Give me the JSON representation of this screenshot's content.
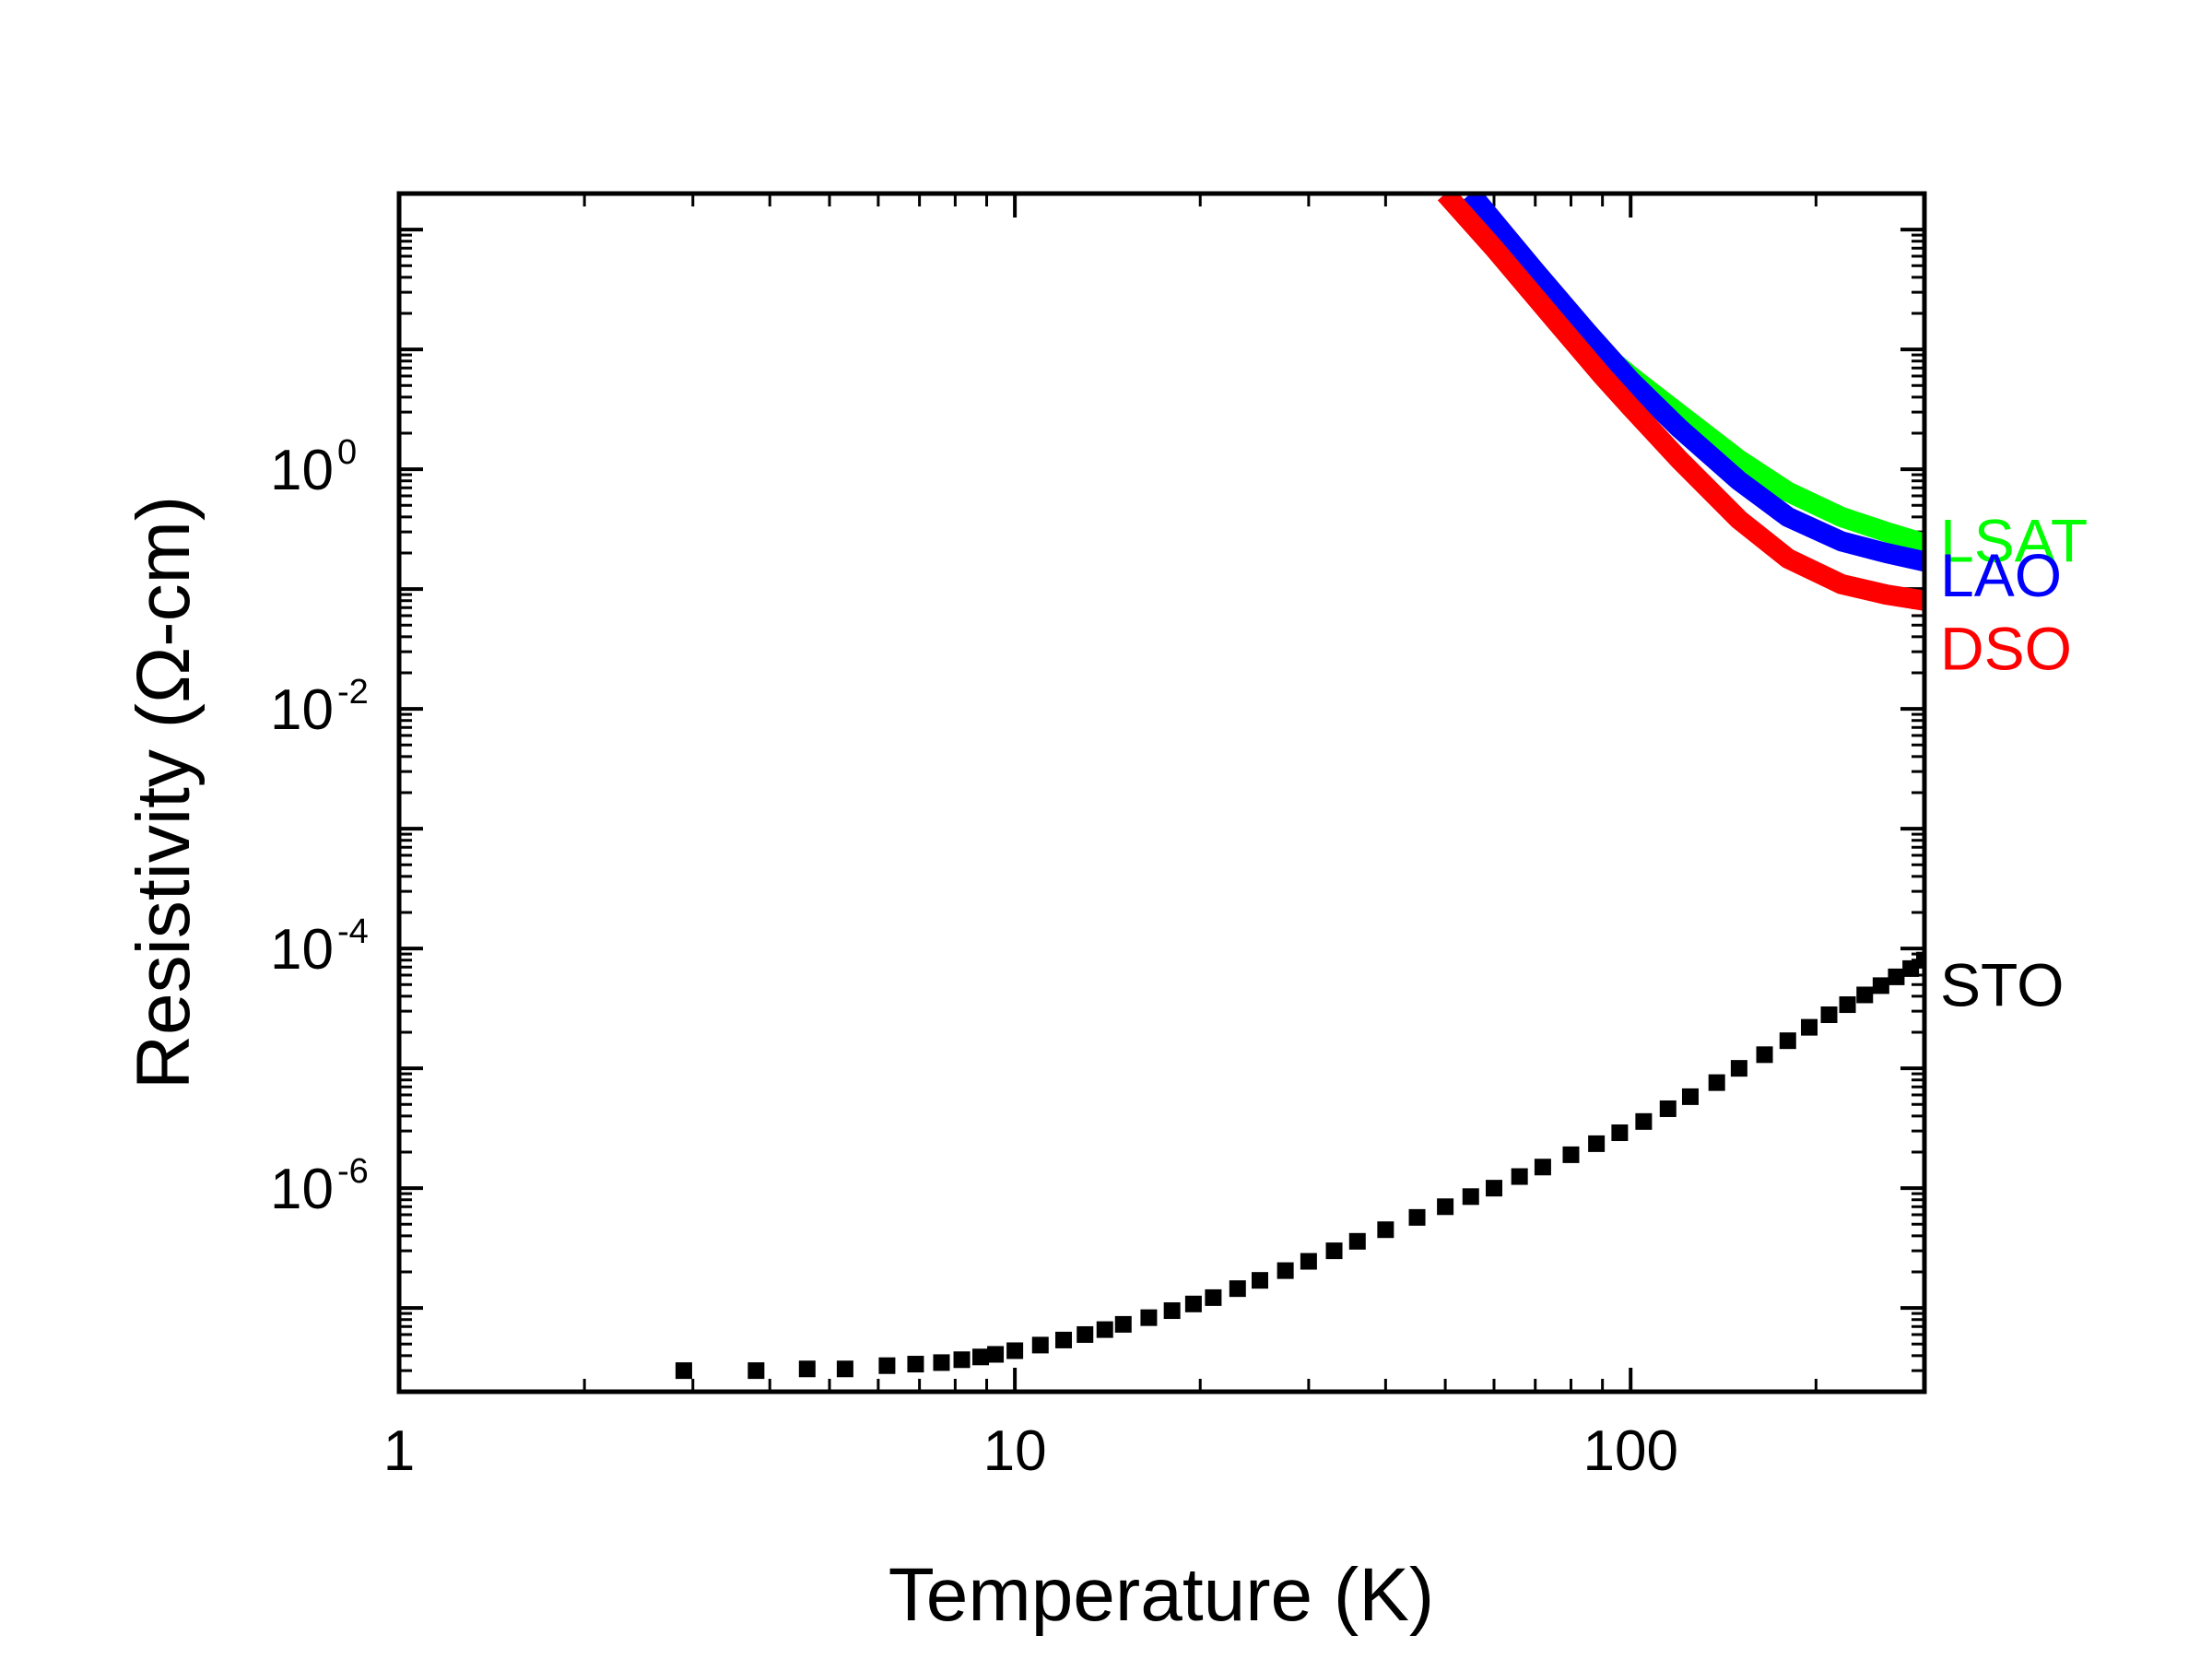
{
  "chart_data": {
    "type": "line",
    "title": "",
    "xlabel": "Temperature (K)",
    "ylabel": "Resistivity (Ω-cm)",
    "x_scale": "log",
    "y_scale": "log",
    "xlim": [
      1,
      300
    ],
    "ylim": [
      2e-08,
      200
    ],
    "grid": false,
    "x_ticks": [
      {
        "value": 1,
        "label": "1"
      },
      {
        "value": 10,
        "label": "10"
      },
      {
        "value": 100,
        "label": "100"
      }
    ],
    "y_ticks": [
      {
        "value": 1,
        "base": "10",
        "exp": "0"
      },
      {
        "value": 0.01,
        "base": "10",
        "exp": "-2"
      },
      {
        "value": 0.0001,
        "base": "10",
        "exp": "-4"
      },
      {
        "value": 1e-06,
        "base": "10",
        "exp": "-6"
      }
    ],
    "series": [
      {
        "name": "LSAT",
        "label": "LSAT",
        "color": "#00ff00",
        "style": "line",
        "x": [
          85,
          100,
          120,
          150,
          180,
          220,
          260,
          300
        ],
        "y": [
          12,
          6.0,
          2.9,
          1.2,
          0.65,
          0.4,
          0.3,
          0.24
        ]
      },
      {
        "name": "LAO",
        "label": "LAO",
        "color": "#0000ff",
        "style": "line",
        "x": [
          55,
          70,
          85,
          100,
          120,
          150,
          180,
          220,
          260,
          300
        ],
        "y": [
          200,
          45,
          14,
          5.5,
          2.2,
          0.8,
          0.4,
          0.25,
          0.2,
          0.17
        ]
      },
      {
        "name": "DSO",
        "label": "DSO",
        "color": "#ff0000",
        "style": "line",
        "x": [
          50,
          60,
          75,
          90,
          100,
          120,
          150,
          180,
          220,
          260,
          300
        ],
        "y": [
          200,
          70,
          18,
          6.0,
          3.3,
          1.2,
          0.38,
          0.18,
          0.11,
          0.09,
          0.08
        ]
      },
      {
        "name": "STO",
        "label": "STO",
        "color": "#000000",
        "style": "markers",
        "marker": "square",
        "x": [
          2.9,
          3.8,
          4.6,
          5.3,
          6.2,
          6.9,
          7.6,
          8.2,
          8.8,
          9.3,
          10.0,
          11,
          12,
          13,
          14,
          15,
          16.5,
          18,
          19.5,
          21,
          23,
          25,
          27.5,
          30,
          33,
          36,
          40,
          45,
          50,
          55,
          60,
          66,
          72,
          80,
          88,
          96,
          105,
          115,
          125,
          138,
          150,
          165,
          180,
          195,
          210,
          225,
          240,
          255,
          270,
          285,
          300
        ],
        "y": [
          3e-08,
          3e-08,
          3.1e-08,
          3.1e-08,
          3.3e-08,
          3.4e-08,
          3.5e-08,
          3.7e-08,
          3.9e-08,
          4.1e-08,
          4.4e-08,
          4.9e-08,
          5.4e-08,
          6e-08,
          6.6e-08,
          7.3e-08,
          8.3e-08,
          9.5e-08,
          1.08e-07,
          1.22e-07,
          1.45e-07,
          1.7e-07,
          2.05e-07,
          2.45e-07,
          3e-07,
          3.6e-07,
          4.5e-07,
          5.7e-07,
          7e-07,
          8.5e-07,
          1e-06,
          1.25e-06,
          1.5e-06,
          1.9e-06,
          2.35e-06,
          2.9e-06,
          3.6e-06,
          4.6e-06,
          5.8e-06,
          7.6e-06,
          1e-05,
          1.3e-05,
          1.7e-05,
          2.2e-05,
          2.8e-05,
          3.4e-05,
          4.1e-05,
          4.9e-05,
          5.8e-05,
          6.8e-05,
          8e-05
        ]
      }
    ]
  }
}
